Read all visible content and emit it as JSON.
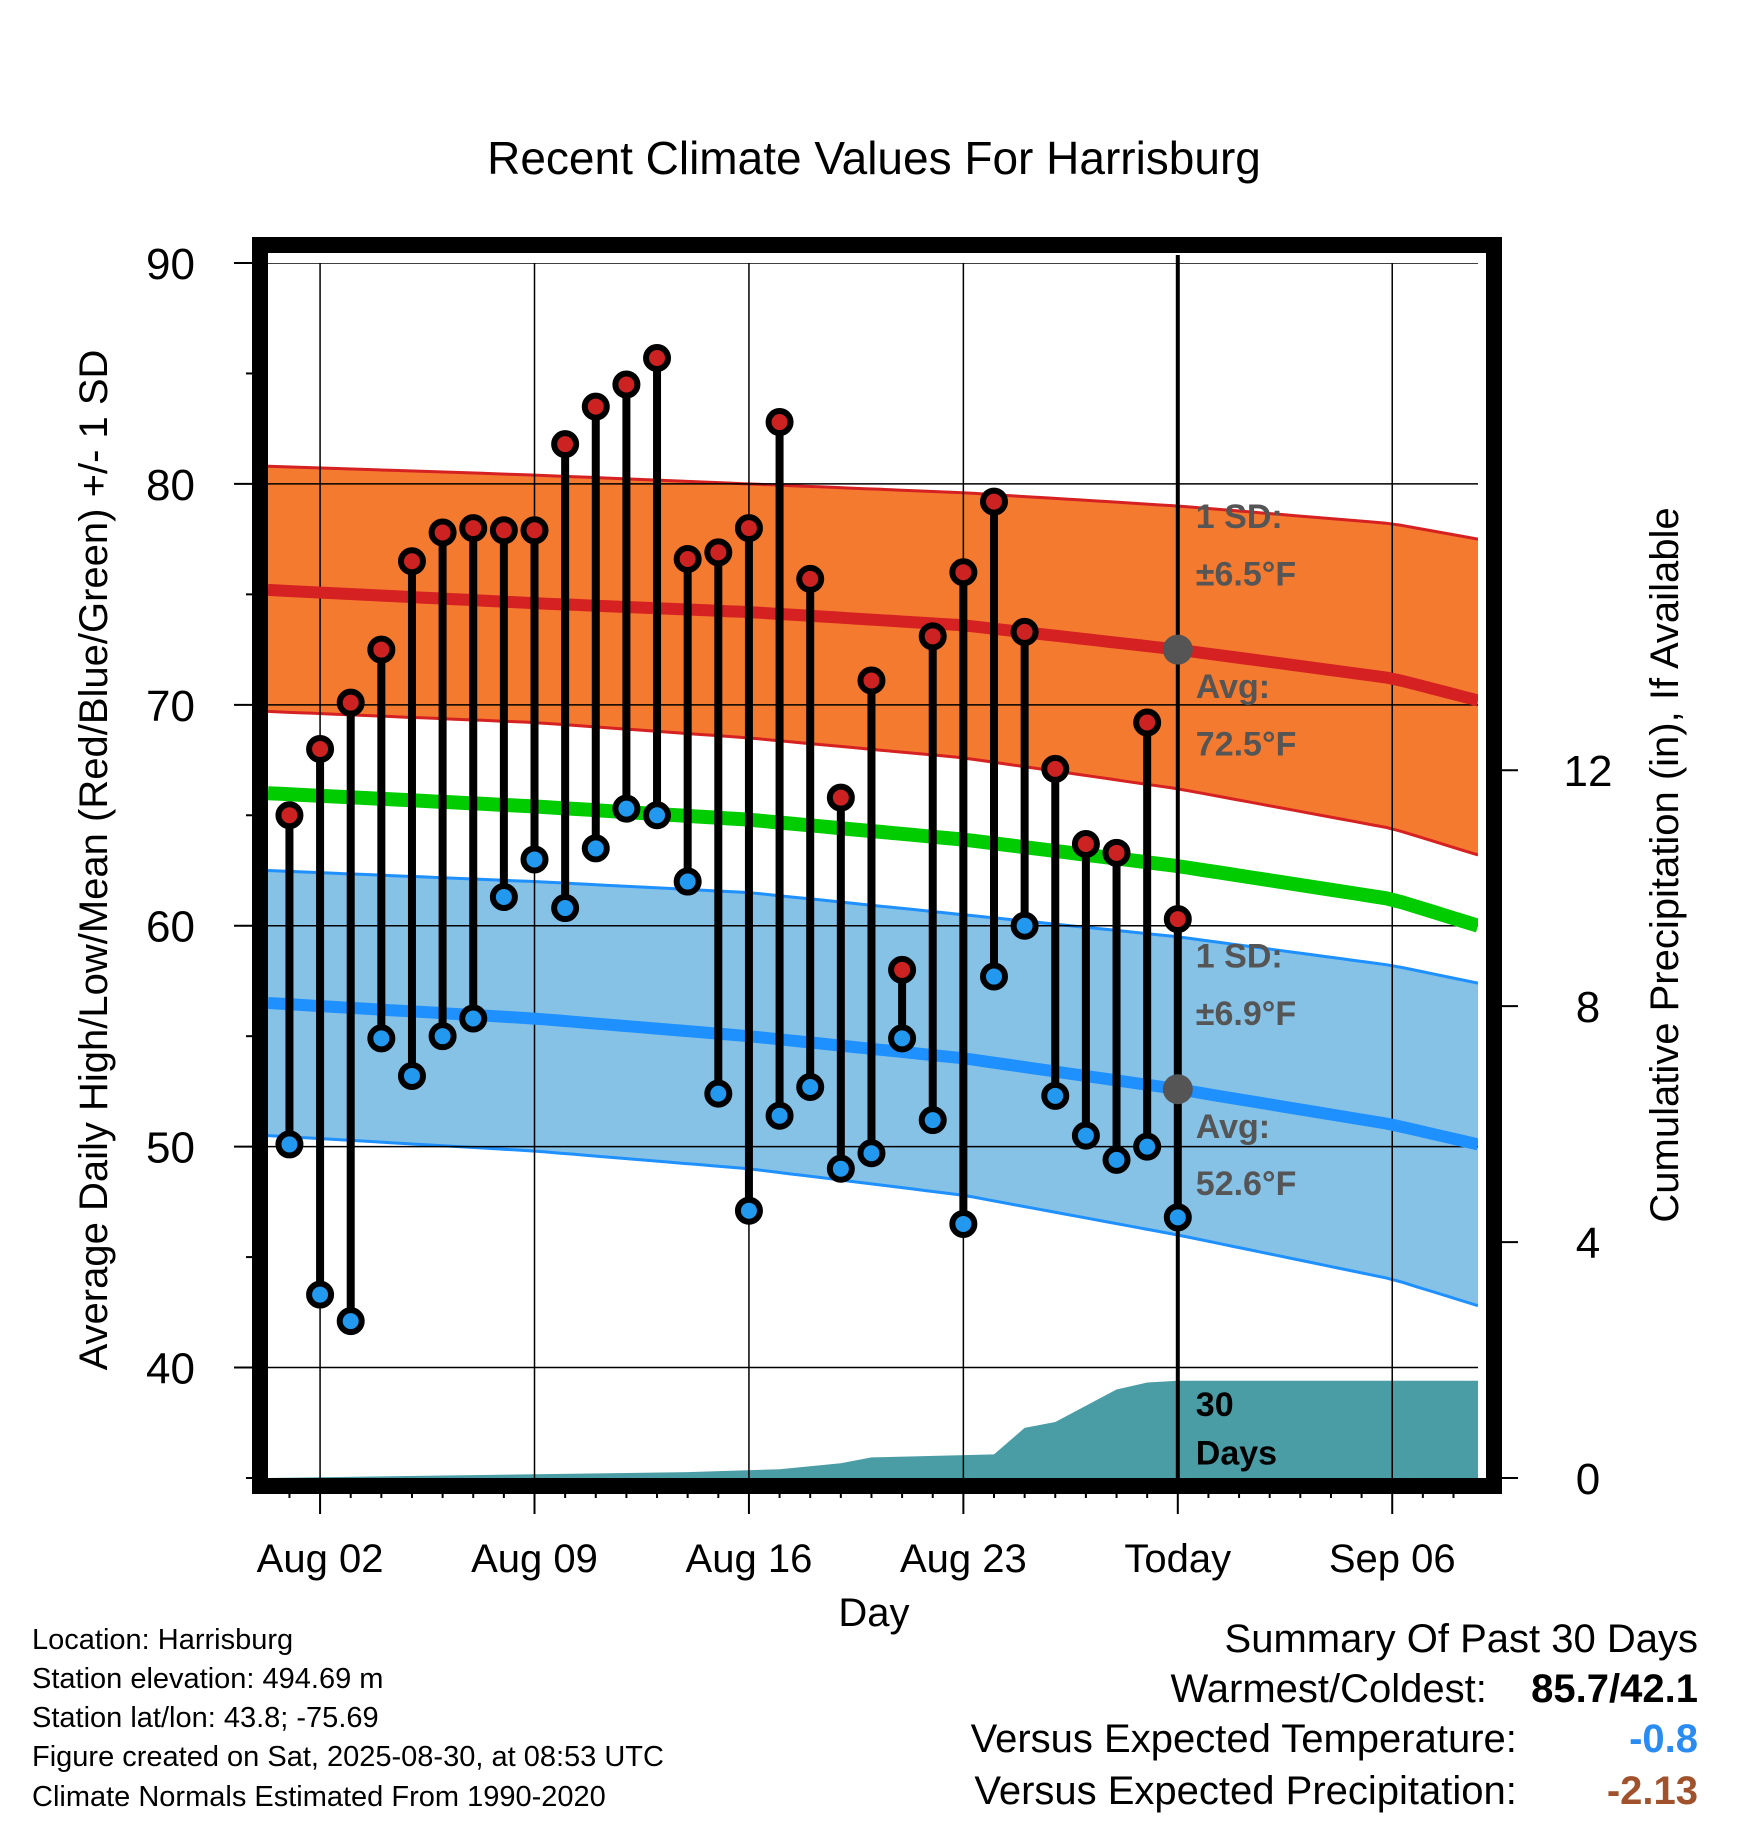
{
  "chart_data": {
    "type": "line",
    "title": "Recent Climate Values For Harrisburg",
    "xlabel": "Day",
    "ylabel": "Average Daily High/Low/Mean (Red/Blue/Green) +/- 1 SD",
    "y2label": "Cumulative Precipitation (in), If Available",
    "x_tick_labels": [
      "Aug 02",
      "Aug 09",
      "Aug 16",
      "Aug 23",
      "Today",
      "Sep 06"
    ],
    "x_tick_days": [
      2,
      9,
      16,
      23,
      30,
      37
    ],
    "x_range_days": [
      0.3,
      39.8
    ],
    "today_day": 30,
    "ylim": [
      35,
      90
    ],
    "y_ticks": [
      40,
      50,
      60,
      70,
      80,
      90
    ],
    "y2lim": [
      0,
      20.6
    ],
    "y2_ticks": [
      0,
      4,
      8,
      12
    ],
    "grid": true,
    "observed": {
      "days": [
        1,
        2,
        3,
        4,
        5,
        6,
        7,
        8,
        9,
        10,
        11,
        12,
        13,
        14,
        15,
        16,
        17,
        18,
        19,
        20,
        21,
        22,
        23,
        24,
        25,
        26,
        27,
        28,
        29,
        30
      ],
      "highs": [
        65.0,
        68.0,
        70.1,
        72.5,
        76.5,
        77.8,
        78.0,
        77.9,
        77.9,
        81.8,
        83.5,
        84.5,
        85.7,
        76.6,
        76.9,
        78.0,
        82.8,
        75.7,
        65.8,
        71.1,
        58.0,
        73.1,
        76.0,
        79.2,
        73.3,
        67.1,
        63.7,
        63.3,
        69.2,
        60.3
      ],
      "lows": [
        50.1,
        43.3,
        42.1,
        54.9,
        53.2,
        55.0,
        55.8,
        61.3,
        63.0,
        60.8,
        63.5,
        65.3,
        65.0,
        62.0,
        52.4,
        47.1,
        51.4,
        52.7,
        49.0,
        49.7,
        54.9,
        51.2,
        46.5,
        57.7,
        60.0,
        52.3,
        50.5,
        49.4,
        50.0,
        46.8
      ]
    },
    "normals": {
      "days": [
        0.3,
        9,
        16,
        23,
        30,
        37,
        39.8
      ],
      "high_mean": [
        75.2,
        74.6,
        74.2,
        73.6,
        72.5,
        71.2,
        70.2
      ],
      "high_upper": [
        80.8,
        80.4,
        80.0,
        79.6,
        79.0,
        78.2,
        77.5
      ],
      "high_lower": [
        69.7,
        69.2,
        68.5,
        67.6,
        66.2,
        64.4,
        63.2
      ],
      "mean": [
        66.0,
        65.4,
        64.8,
        63.9,
        62.7,
        61.2,
        60.0
      ],
      "low_mean": [
        56.5,
        55.8,
        55.0,
        54.0,
        52.6,
        51.0,
        50.1
      ],
      "low_upper": [
        62.5,
        62.0,
        61.5,
        60.5,
        59.5,
        58.2,
        57.4
      ],
      "low_lower": [
        50.5,
        49.8,
        49.0,
        47.8,
        46.0,
        44.0,
        42.8
      ]
    },
    "cumulative_precip": {
      "days": [
        0.3,
        7,
        14,
        17,
        19,
        20,
        24,
        25,
        26,
        28,
        29,
        30,
        39.8
      ],
      "values": [
        0,
        0.05,
        0.1,
        0.15,
        0.25,
        0.35,
        0.4,
        0.85,
        0.95,
        1.5,
        1.62,
        1.65,
        1.65
      ]
    },
    "annotations": {
      "high_sd": "1 SD:",
      "high_sd_value": "±6.5°F",
      "high_avg": "Avg:",
      "high_avg_value": "72.5°F",
      "low_sd": "1 SD:",
      "low_sd_value": "±6.9°F",
      "low_avg": "Avg:",
      "low_avg_value": "52.6°F",
      "precip_period": "30",
      "precip_period_unit": "Days"
    },
    "colors": {
      "high_band": "#f47a30",
      "high_line": "#d52121",
      "mean_line": "#00cc00",
      "low_band": "#86c1e6",
      "low_line": "#1e90ff",
      "precip_fill": "#4a9da5",
      "high_marker": "#cc2222",
      "low_marker": "#2299ee",
      "today_marker": "#555555",
      "annotation_text": "#555555"
    }
  },
  "info": {
    "location": "Location: Harrisburg",
    "elevation": "Station elevation: 494.69 m",
    "latlon": "Station lat/lon: 43.8; -75.69",
    "created": "Figure created on Sat, 2025-08-30, at 08:53 UTC",
    "normals": "Climate Normals Estimated From 1990-2020"
  },
  "summary": {
    "title": "Summary Of Past 30 Days",
    "warm_cold_label": "Warmest/Coldest:",
    "warm_cold_value": "85.7/42.1",
    "temp_label": "Versus Expected Temperature:",
    "temp_value": "-0.8",
    "temp_color": "#2a8cf0",
    "precip_label": "Versus Expected Precipitation:",
    "precip_value": "-2.13",
    "precip_color": "#a0522d"
  }
}
